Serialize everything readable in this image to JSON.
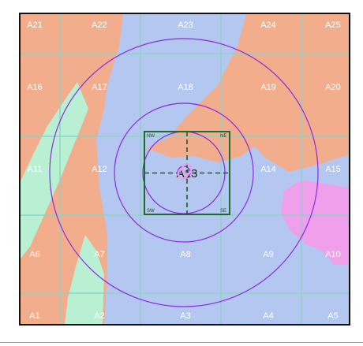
{
  "map": {
    "colors": {
      "salmon": "#f2ad8c",
      "blue": "#b4c7f0",
      "mint": "#b9f0d4",
      "pink": "#ef9fec",
      "grid": "#8fd2c4",
      "rings": "#8a2be2",
      "box": "#1f6b2f",
      "crosshair": "#1f5a28"
    },
    "cells": [
      [
        "A21",
        "A22",
        "A23",
        "A24",
        "A25"
      ],
      [
        "A16",
        "A17",
        "A18",
        "A19",
        "A20"
      ],
      [
        "A11",
        "A12",
        "A13",
        "A14",
        "A15"
      ],
      [
        "A6",
        "A7",
        "A8",
        "A9",
        "A10"
      ],
      [
        "A1",
        "A2",
        "A3",
        "A4",
        "A5"
      ]
    ],
    "center_label": "A13",
    "corner_labels": {
      "nw": "NW",
      "ne": "NE",
      "sw": "SW",
      "se": "SE"
    },
    "rings": 4,
    "icons": {
      "center_marker": "pink-swirl-icon"
    }
  }
}
